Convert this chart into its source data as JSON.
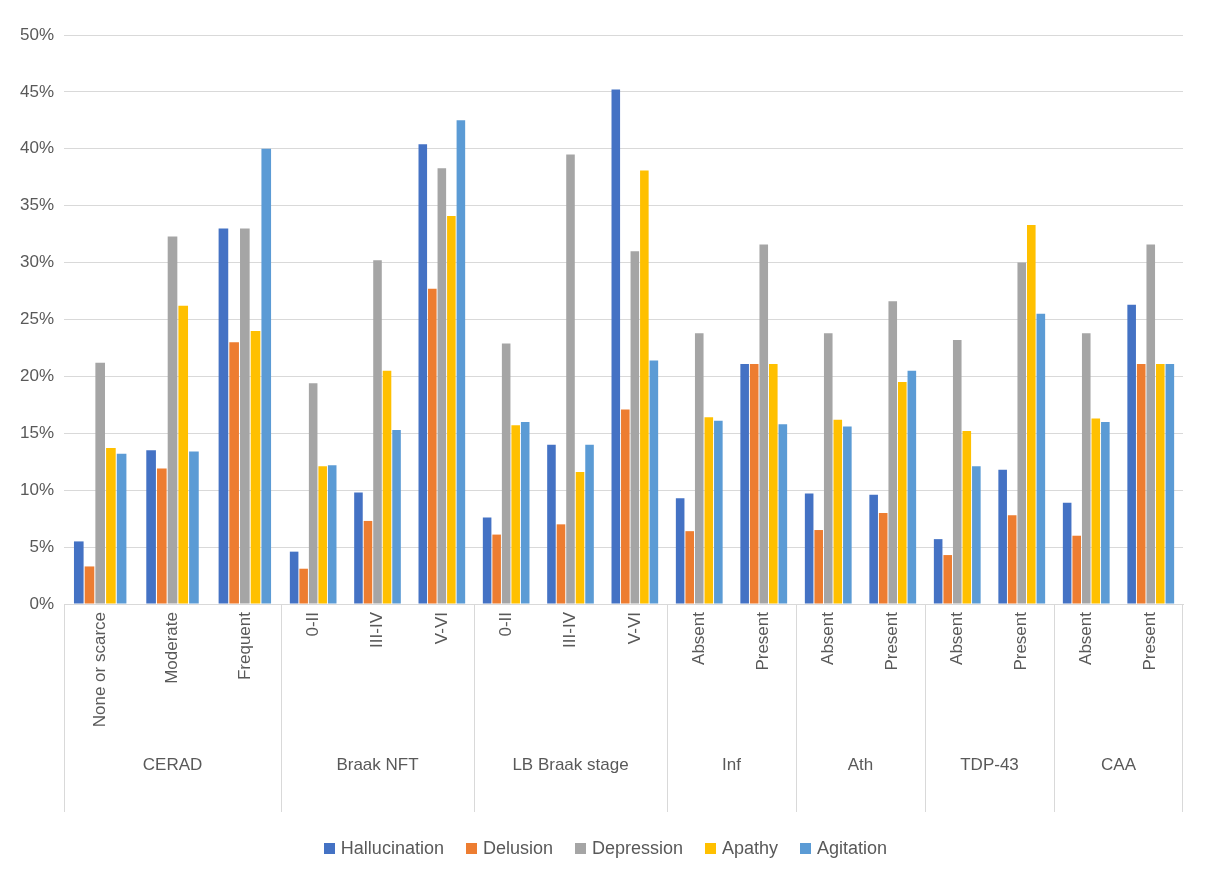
{
  "chart_data": [
    {
      "type": "bar",
      "xlabel": "CERAD",
      "categories": [
        "None or scarce",
        "Moderate",
        "Frequent"
      ],
      "series": [
        {
          "name": "Hallucination",
          "color": "#4472c4",
          "values": [
            5.5,
            13.5,
            33
          ]
        },
        {
          "name": "Delusion",
          "color": "#ed7d31",
          "values": [
            3.3,
            11.9,
            23
          ]
        },
        {
          "name": "Depression",
          "color": "#a5a5a5",
          "values": [
            21.2,
            32.3,
            33
          ]
        },
        {
          "name": "Apathy",
          "color": "#ffc000",
          "values": [
            13.7,
            26.2,
            24
          ]
        },
        {
          "name": "Agitation",
          "color": "#5b9bd5",
          "values": [
            13.2,
            13.4,
            40
          ]
        }
      ],
      "ylim": [
        0,
        50
      ],
      "yticks": [
        {
          "value": 0,
          "label": "0%"
        },
        {
          "value": 5,
          "label": "5%"
        },
        {
          "value": 10,
          "label": "10%"
        },
        {
          "value": 15,
          "label": "15%"
        },
        {
          "value": 20,
          "label": "20%"
        },
        {
          "value": 25,
          "label": "25%"
        },
        {
          "value": 30,
          "label": "30%"
        },
        {
          "value": 35,
          "label": "35%"
        },
        {
          "value": 40,
          "label": "40%"
        },
        {
          "value": 45,
          "label": "45%"
        },
        {
          "value": 50,
          "label": "50%"
        }
      ],
      "grid": "y",
      "legend": "bottom"
    },
    {
      "type": "bar",
      "xlabel": "Braak NFT",
      "categories": [
        "0-II",
        "III-IV",
        "V-VI"
      ],
      "series": [
        {
          "color": "#4472c4",
          "values": [
            4.6,
            9.8,
            40.4
          ]
        },
        {
          "color": "#ed7d31",
          "values": [
            3.1,
            7.3,
            27.7
          ]
        },
        {
          "color": "#a5a5a5",
          "values": [
            19.4,
            30.2,
            38.3
          ]
        },
        {
          "color": "#ffc000",
          "values": [
            12.1,
            20.5,
            34.1
          ]
        },
        {
          "color": "#5b9bd5",
          "values": [
            12.2,
            15.3,
            42.5
          ]
        }
      ],
      "ylim": [
        0,
        50
      ],
      "yticks": [
        0,
        5,
        10,
        15,
        20,
        25,
        30,
        35,
        40,
        45,
        50
      ],
      "grid": "y",
      "tick_labels": "x"
    },
    {
      "type": "bar",
      "xlabel": "LB Braak stage",
      "categories": [
        "0-II",
        "III-IV",
        "V-VI"
      ],
      "series": [
        {
          "color": "#4472c4",
          "values": [
            7.6,
            14,
            45.2
          ]
        },
        {
          "color": "#ed7d31",
          "values": [
            6.1,
            7,
            17.1
          ]
        },
        {
          "color": "#a5a5a5",
          "values": [
            22.9,
            39.5,
            31
          ]
        },
        {
          "color": "#ffc000",
          "values": [
            15.7,
            11.6,
            38.1
          ]
        },
        {
          "color": "#5b9bd5",
          "values": [
            16,
            14,
            21.4
          ]
        }
      ],
      "ylim": [
        0,
        50
      ],
      "yticks": [
        0,
        5,
        10,
        15,
        20,
        25,
        30,
        35,
        40,
        45,
        50
      ],
      "grid": "y",
      "tick_labels": "x"
    },
    {
      "type": "bar",
      "xlabel": "Inf",
      "categories": [
        "Absent",
        "Present"
      ],
      "series": [
        {
          "color": "#4472c4",
          "values": [
            9.3,
            21.1
          ]
        },
        {
          "color": "#ed7d31",
          "values": [
            6.4,
            21.1
          ]
        },
        {
          "color": "#a5a5a5",
          "values": [
            23.8,
            31.6
          ]
        },
        {
          "color": "#ffc000",
          "values": [
            16.4,
            21.1
          ]
        },
        {
          "color": "#5b9bd5",
          "values": [
            16.1,
            15.8
          ]
        }
      ],
      "ylim": [
        0,
        50
      ],
      "yticks": [
        0,
        5,
        10,
        15,
        20,
        25,
        30,
        35,
        40,
        45,
        50
      ],
      "grid": "y",
      "tick_labels": "x"
    },
    {
      "type": "bar",
      "xlabel": "Ath",
      "categories": [
        "Absent",
        "Present"
      ],
      "series": [
        {
          "color": "#4472c4",
          "values": [
            9.7,
            9.6
          ]
        },
        {
          "color": "#ed7d31",
          "values": [
            6.5,
            8
          ]
        },
        {
          "color": "#a5a5a5",
          "values": [
            23.8,
            26.6
          ]
        },
        {
          "color": "#ffc000",
          "values": [
            16.2,
            19.5
          ]
        },
        {
          "color": "#5b9bd5",
          "values": [
            15.6,
            20.5
          ]
        }
      ],
      "ylim": [
        0,
        50
      ],
      "yticks": [
        0,
        5,
        10,
        15,
        20,
        25,
        30,
        35,
        40,
        45,
        50
      ],
      "grid": "y",
      "tick_labels": "x"
    },
    {
      "type": "bar",
      "xlabel": "TDP-43",
      "categories": [
        "Absent",
        "Present"
      ],
      "series": [
        {
          "color": "#4472c4",
          "values": [
            5.7,
            11.8
          ]
        },
        {
          "color": "#ed7d31",
          "values": [
            4.3,
            7.8
          ]
        },
        {
          "color": "#a5a5a5",
          "values": [
            23.2,
            30
          ]
        },
        {
          "color": "#ffc000",
          "values": [
            15.2,
            33.3
          ]
        },
        {
          "color": "#5b9bd5",
          "values": [
            12.1,
            25.5
          ]
        }
      ],
      "ylim": [
        0,
        50
      ],
      "yticks": [
        0,
        5,
        10,
        15,
        20,
        25,
        30,
        35,
        40,
        45,
        50
      ],
      "grid": "y",
      "tick_labels": "x"
    },
    {
      "type": "bar",
      "xlabel": "CAA",
      "categories": [
        "Absent",
        "Present"
      ],
      "series": [
        {
          "color": "#4472c4",
          "values": [
            8.9,
            26.3
          ]
        },
        {
          "color": "#ed7d31",
          "values": [
            6,
            21.1
          ]
        },
        {
          "color": "#a5a5a5",
          "values": [
            23.8,
            31.6
          ]
        },
        {
          "color": "#ffc000",
          "values": [
            16.3,
            21.1
          ]
        },
        {
          "color": "#5b9bd5",
          "values": [
            16,
            21.1
          ]
        }
      ],
      "ylim": [
        0,
        50
      ],
      "yticks": [
        0,
        5,
        10,
        15,
        20,
        25,
        30,
        35,
        40,
        45,
        50
      ],
      "grid": "y",
      "tick_labels": "x"
    }
  ]
}
